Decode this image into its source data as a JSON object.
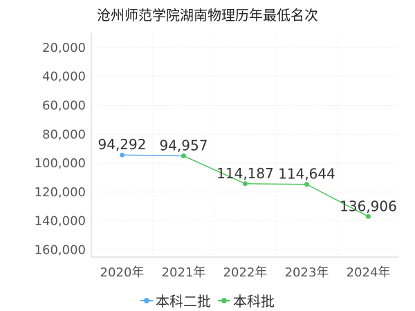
{
  "chart_data": {
    "type": "line",
    "title": "沧州师范学院湖南物理历年最低名次",
    "categories": [
      "2020年",
      "2021年",
      "2022年",
      "2023年",
      "2024年"
    ],
    "y_reversed": true,
    "ylim": [
      10000,
      165000
    ],
    "y_ticks": [
      20000,
      40000,
      60000,
      80000,
      100000,
      120000,
      140000,
      160000
    ],
    "y_tick_labels": [
      "20,000",
      "40,000",
      "60,000",
      "80,000",
      "100,000",
      "120,000",
      "140,000",
      "160,000"
    ],
    "grid": true,
    "legend_position": "bottom-center",
    "series": [
      {
        "name": "本科二批",
        "color": "#5aabf0",
        "values": [
          94292,
          94957,
          null,
          null,
          null
        ],
        "labels": [
          "94,292",
          null,
          null,
          null,
          null
        ]
      },
      {
        "name": "本科批",
        "color": "#4cc65a",
        "values": [
          null,
          94957,
          114187,
          114644,
          136906
        ],
        "labels": [
          null,
          "94,957",
          "114,187",
          "114,644",
          "136,906"
        ]
      }
    ]
  }
}
